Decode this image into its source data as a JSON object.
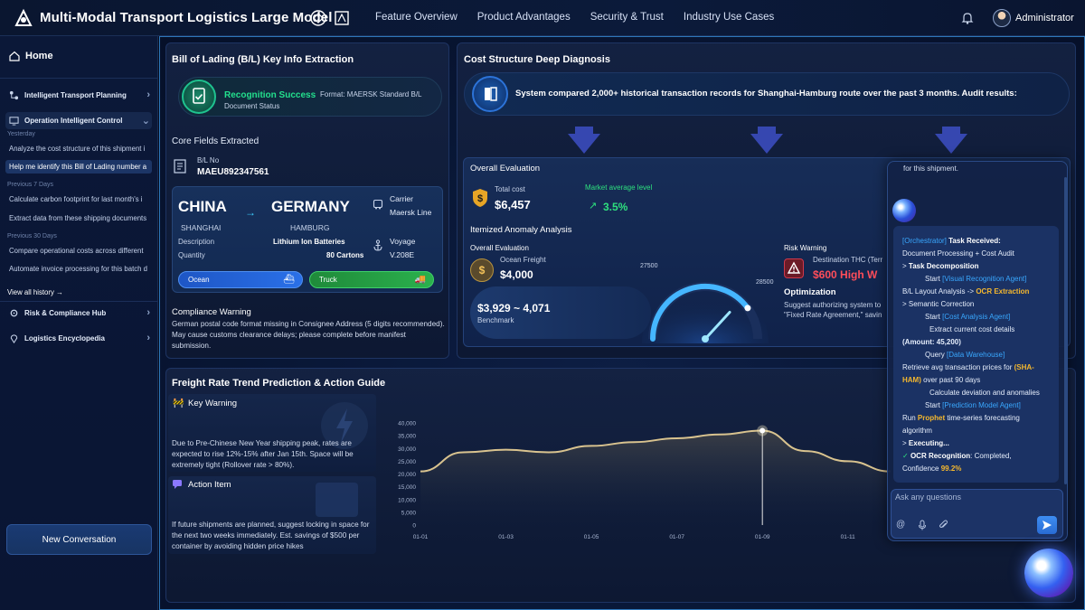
{
  "header": {
    "app_title": "Multi-Modal Transport Logistics Large Model",
    "nav": [
      "Feature Overview",
      "Product Advantages",
      "Security & Trust",
      "Industry Use Cases"
    ],
    "user_name": "Administrator"
  },
  "sidebar": {
    "home": "Home",
    "groups": {
      "transport": "Intelligent Transport Planning",
      "operation": "Operation Intelligent Control",
      "risk": "Risk & Compliance Hub",
      "encyclopedia": "Logistics Encyclopedia"
    },
    "sections": {
      "yesterday": "Yesterday",
      "prev7": "Previous 7 Days",
      "prev30": "Previous 30 Days"
    },
    "history": [
      "Analyze the cost structure of this shipment i",
      "Help me identify this Bill of Lading number a",
      "Calculate carbon footprint for last month's i",
      "Extract data from these shipping documents",
      "Compare operational costs across different",
      "Automate invoice processing for this batch d"
    ],
    "view_all": "View all history →",
    "new_conversation": "New Conversation"
  },
  "bl_panel": {
    "title": "Bill of Lading (B/L) Key Info Extraction",
    "status": "Recognition Success",
    "format": "Format: MAERSK Standard B/L",
    "status_label": "Document Status",
    "core_fields_title": "Core Fields Extracted",
    "bl_no_label": "B/L No",
    "bl_no": "MAEU892347561",
    "origin_country": "CHINA",
    "origin_city": "SHANGHAI",
    "dest_country": "GERMANY",
    "dest_city": "HAMBURG",
    "carrier_label": "Carrier",
    "carrier": "Maersk Line",
    "description_label": "Description",
    "description": "Lithium Ion Batteries",
    "quantity_label": "Quantity",
    "quantity": "80 Cartons",
    "voyage_label": "Voyage",
    "voyage": "V.208E",
    "mode_ocean": "Ocean",
    "mode_truck": "Truck",
    "compliance_title": "Compliance Warning",
    "compliance_text": "German postal code format missing in Consignee Address (5 digits recommended). May cause customs clearance delays; please complete before manifest submission."
  },
  "cost_panel": {
    "title": "Cost Structure Deep Diagnosis",
    "system_text": "System compared 2,000+ historical transaction records for Shanghai-Hamburg route over the past 3 months. Audit results:",
    "overall_title": "Overall Evaluation",
    "total_cost_label": "Total cost",
    "total_cost": "$6,457",
    "market_label": "Market average level",
    "market_arrow": "↗",
    "market_value": "3.5%",
    "itemized_title": "Itemized Anomaly Analysis",
    "itemized_overall": "Overall Evaluation",
    "ocean_freight_label": "Ocean Freight",
    "ocean_freight": "$4,000",
    "benchmark_value": "$3,929 ~ 4,071",
    "benchmark_label": "Benchmark",
    "gauge_min": "27500",
    "gauge_max": "28500",
    "gauge_level": 0.8,
    "risk_title": "Risk Warning",
    "risk_dest": "Destination THC (Terr",
    "risk_value": "$600 High W",
    "optimization_title": "Optimization",
    "optimization_text_1": "Suggest authorizing system to",
    "optimization_text_2": "\"Fixed Rate Agreement,\" savin"
  },
  "freight_panel": {
    "title": "Freight Rate Trend Prediction & Action Guide",
    "key_warning_title": "Key Warning",
    "key_warning_text": "Due to Pre-Chinese New Year shipping peak, rates are expected to rise 12%-15% after Jan 15th. Space will be extremely tight (Rollover rate > 80%).",
    "action_title": "Action Item",
    "action_text": "If future shipments are planned, suggest locking in space for the next two weeks immediately. Est. savings of $500 per container by avoiding hidden price hikes"
  },
  "chart_data": {
    "type": "area",
    "x": [
      "01-01",
      "01-02",
      "01-03",
      "01-04",
      "01-05",
      "01-06",
      "01-07",
      "01-08",
      "01-09",
      "01-10",
      "01-11",
      "01-12"
    ],
    "x_tick_labels": [
      "01-01",
      "01-03",
      "01-05",
      "01-07",
      "01-09",
      "01-11"
    ],
    "series": [
      {
        "values": [
          21000,
          28500,
          29500,
          28500,
          31000,
          32500,
          34000,
          35500,
          37000,
          29000,
          25000,
          21000
        ]
      }
    ],
    "ylim": [
      0,
      40000
    ],
    "y_ticks": [
      "40,000",
      "35,000",
      "30,000",
      "25,000",
      "20,000",
      "15,000",
      "10,000",
      "5,000",
      "0"
    ],
    "highlight_x": "01-09",
    "line_color": "#d9c38f",
    "grid": false
  },
  "chat": {
    "top_text": "for this shipment.",
    "input_placeholder": "Ask any questions",
    "lines": {
      "l1a": "[Orchestrator]",
      "l1b": " Task Received:",
      "l2": "Document Processing + Cost Audit",
      "l3a": "> ",
      "l3b": "Task Decomposition",
      "l4a": "Start ",
      "l4b": "[Visual Recognition Agent]",
      "l5a": "B/L Layout Analysis -> ",
      "l5b": "OCR Extraction",
      "l6": "> Semantic Correction",
      "l7a": "Start ",
      "l7b": "[Cost Analysis Agent]",
      "l8": "Extract current cost details",
      "l9": "(Amount: 45,200)",
      "l10a": "Query ",
      "l10b": "[Data Warehouse]",
      "l11a": "Retrieve avg transaction prices for ",
      "l11b": "(SHA-HAM)",
      "l12": " over past 90 days",
      "l13": "Calculate deviation and anomalies",
      "l14a": "Start ",
      "l14b": "[Prediction Model Agent]",
      "l15a": "Run ",
      "l15b": "Prophet",
      "l15c": " time-series forecasting algorithm",
      "l16a": "> ",
      "l16b": "Executing...",
      "l17a": "✓ ",
      "l17b": "OCR Recognition",
      "l17c": ": Completed,",
      "l18a": "Confidence ",
      "l18b": "99.2%"
    }
  }
}
